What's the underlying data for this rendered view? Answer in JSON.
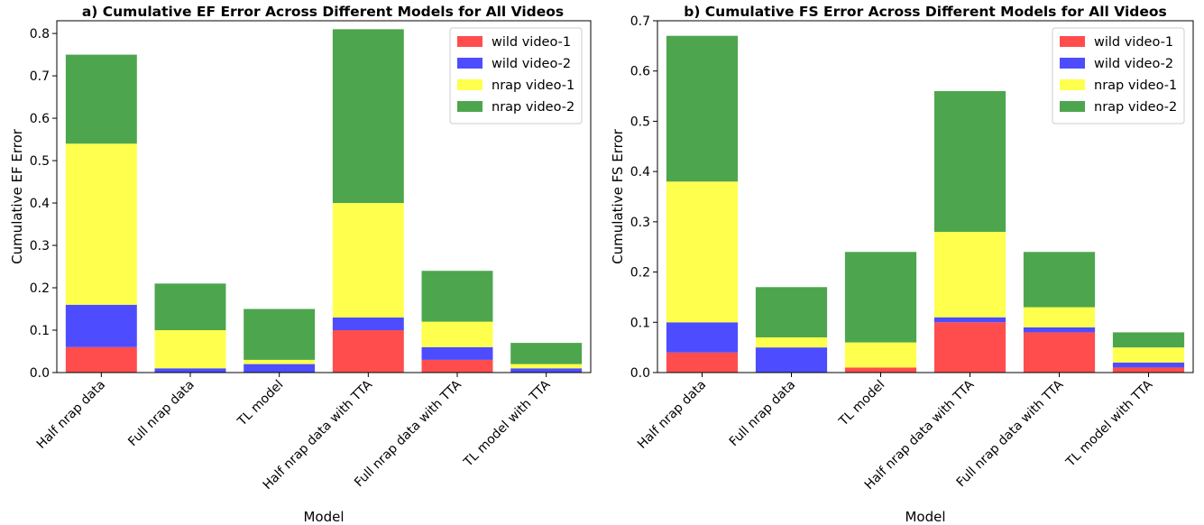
{
  "colors": {
    "wild_video_1": "#ff4d4d",
    "wild_video_2": "#4d4dff",
    "nrap_video_1": "#ffff4d",
    "nrap_video_2": "#4da64d"
  },
  "chart_data": [
    {
      "type": "bar",
      "stacked": true,
      "title": "a) Cumulative EF Error Across Different Models for All Videos",
      "xlabel": "Model",
      "ylabel": "Cumulative EF Error",
      "ylim": [
        0,
        0.83
      ],
      "yticks": [
        "0.0",
        "0.1",
        "0.2",
        "0.3",
        "0.4",
        "0.5",
        "0.6",
        "0.7",
        "0.8"
      ],
      "grid": false,
      "legend": "top-right",
      "categories": [
        "Half nrap data",
        "Full nrap data",
        "TL model",
        "Half nrap data with TTA",
        "Full nrap data with TTA",
        "TL model with TTA"
      ],
      "series": [
        {
          "name": "wild video-1",
          "color_key": "wild_video_1",
          "values": [
            0.06,
            0.0,
            0.0,
            0.1,
            0.03,
            0.0
          ]
        },
        {
          "name": "wild video-2",
          "color_key": "wild_video_2",
          "values": [
            0.1,
            0.01,
            0.02,
            0.03,
            0.03,
            0.01
          ]
        },
        {
          "name": "nrap video-1",
          "color_key": "nrap_video_1",
          "values": [
            0.38,
            0.09,
            0.01,
            0.27,
            0.06,
            0.01
          ]
        },
        {
          "name": "nrap video-2",
          "color_key": "nrap_video_2",
          "values": [
            0.21,
            0.11,
            0.12,
            0.41,
            0.12,
            0.05
          ]
        }
      ]
    },
    {
      "type": "bar",
      "stacked": true,
      "title": "b) Cumulative FS Error Across Different Models for All Videos",
      "xlabel": "Model",
      "ylabel": "Cumulative FS Error",
      "ylim": [
        0,
        0.7
      ],
      "yticks": [
        "0.0",
        "0.1",
        "0.2",
        "0.3",
        "0.4",
        "0.5",
        "0.6",
        "0.7"
      ],
      "grid": false,
      "legend": "top-right",
      "categories": [
        "Half nrap data",
        "Full nrap data",
        "TL model",
        "Half nrap data with TTA",
        "Full nrap data with TTA",
        "TL model with TTA"
      ],
      "series": [
        {
          "name": "wild video-1",
          "color_key": "wild_video_1",
          "values": [
            0.04,
            0.0,
            0.01,
            0.1,
            0.08,
            0.01
          ]
        },
        {
          "name": "wild video-2",
          "color_key": "wild_video_2",
          "values": [
            0.06,
            0.05,
            0.0,
            0.01,
            0.01,
            0.01
          ]
        },
        {
          "name": "nrap video-1",
          "color_key": "nrap_video_1",
          "values": [
            0.28,
            0.02,
            0.05,
            0.17,
            0.04,
            0.03
          ]
        },
        {
          "name": "nrap video-2",
          "color_key": "nrap_video_2",
          "values": [
            0.29,
            0.1,
            0.18,
            0.28,
            0.11,
            0.03
          ]
        }
      ]
    }
  ]
}
